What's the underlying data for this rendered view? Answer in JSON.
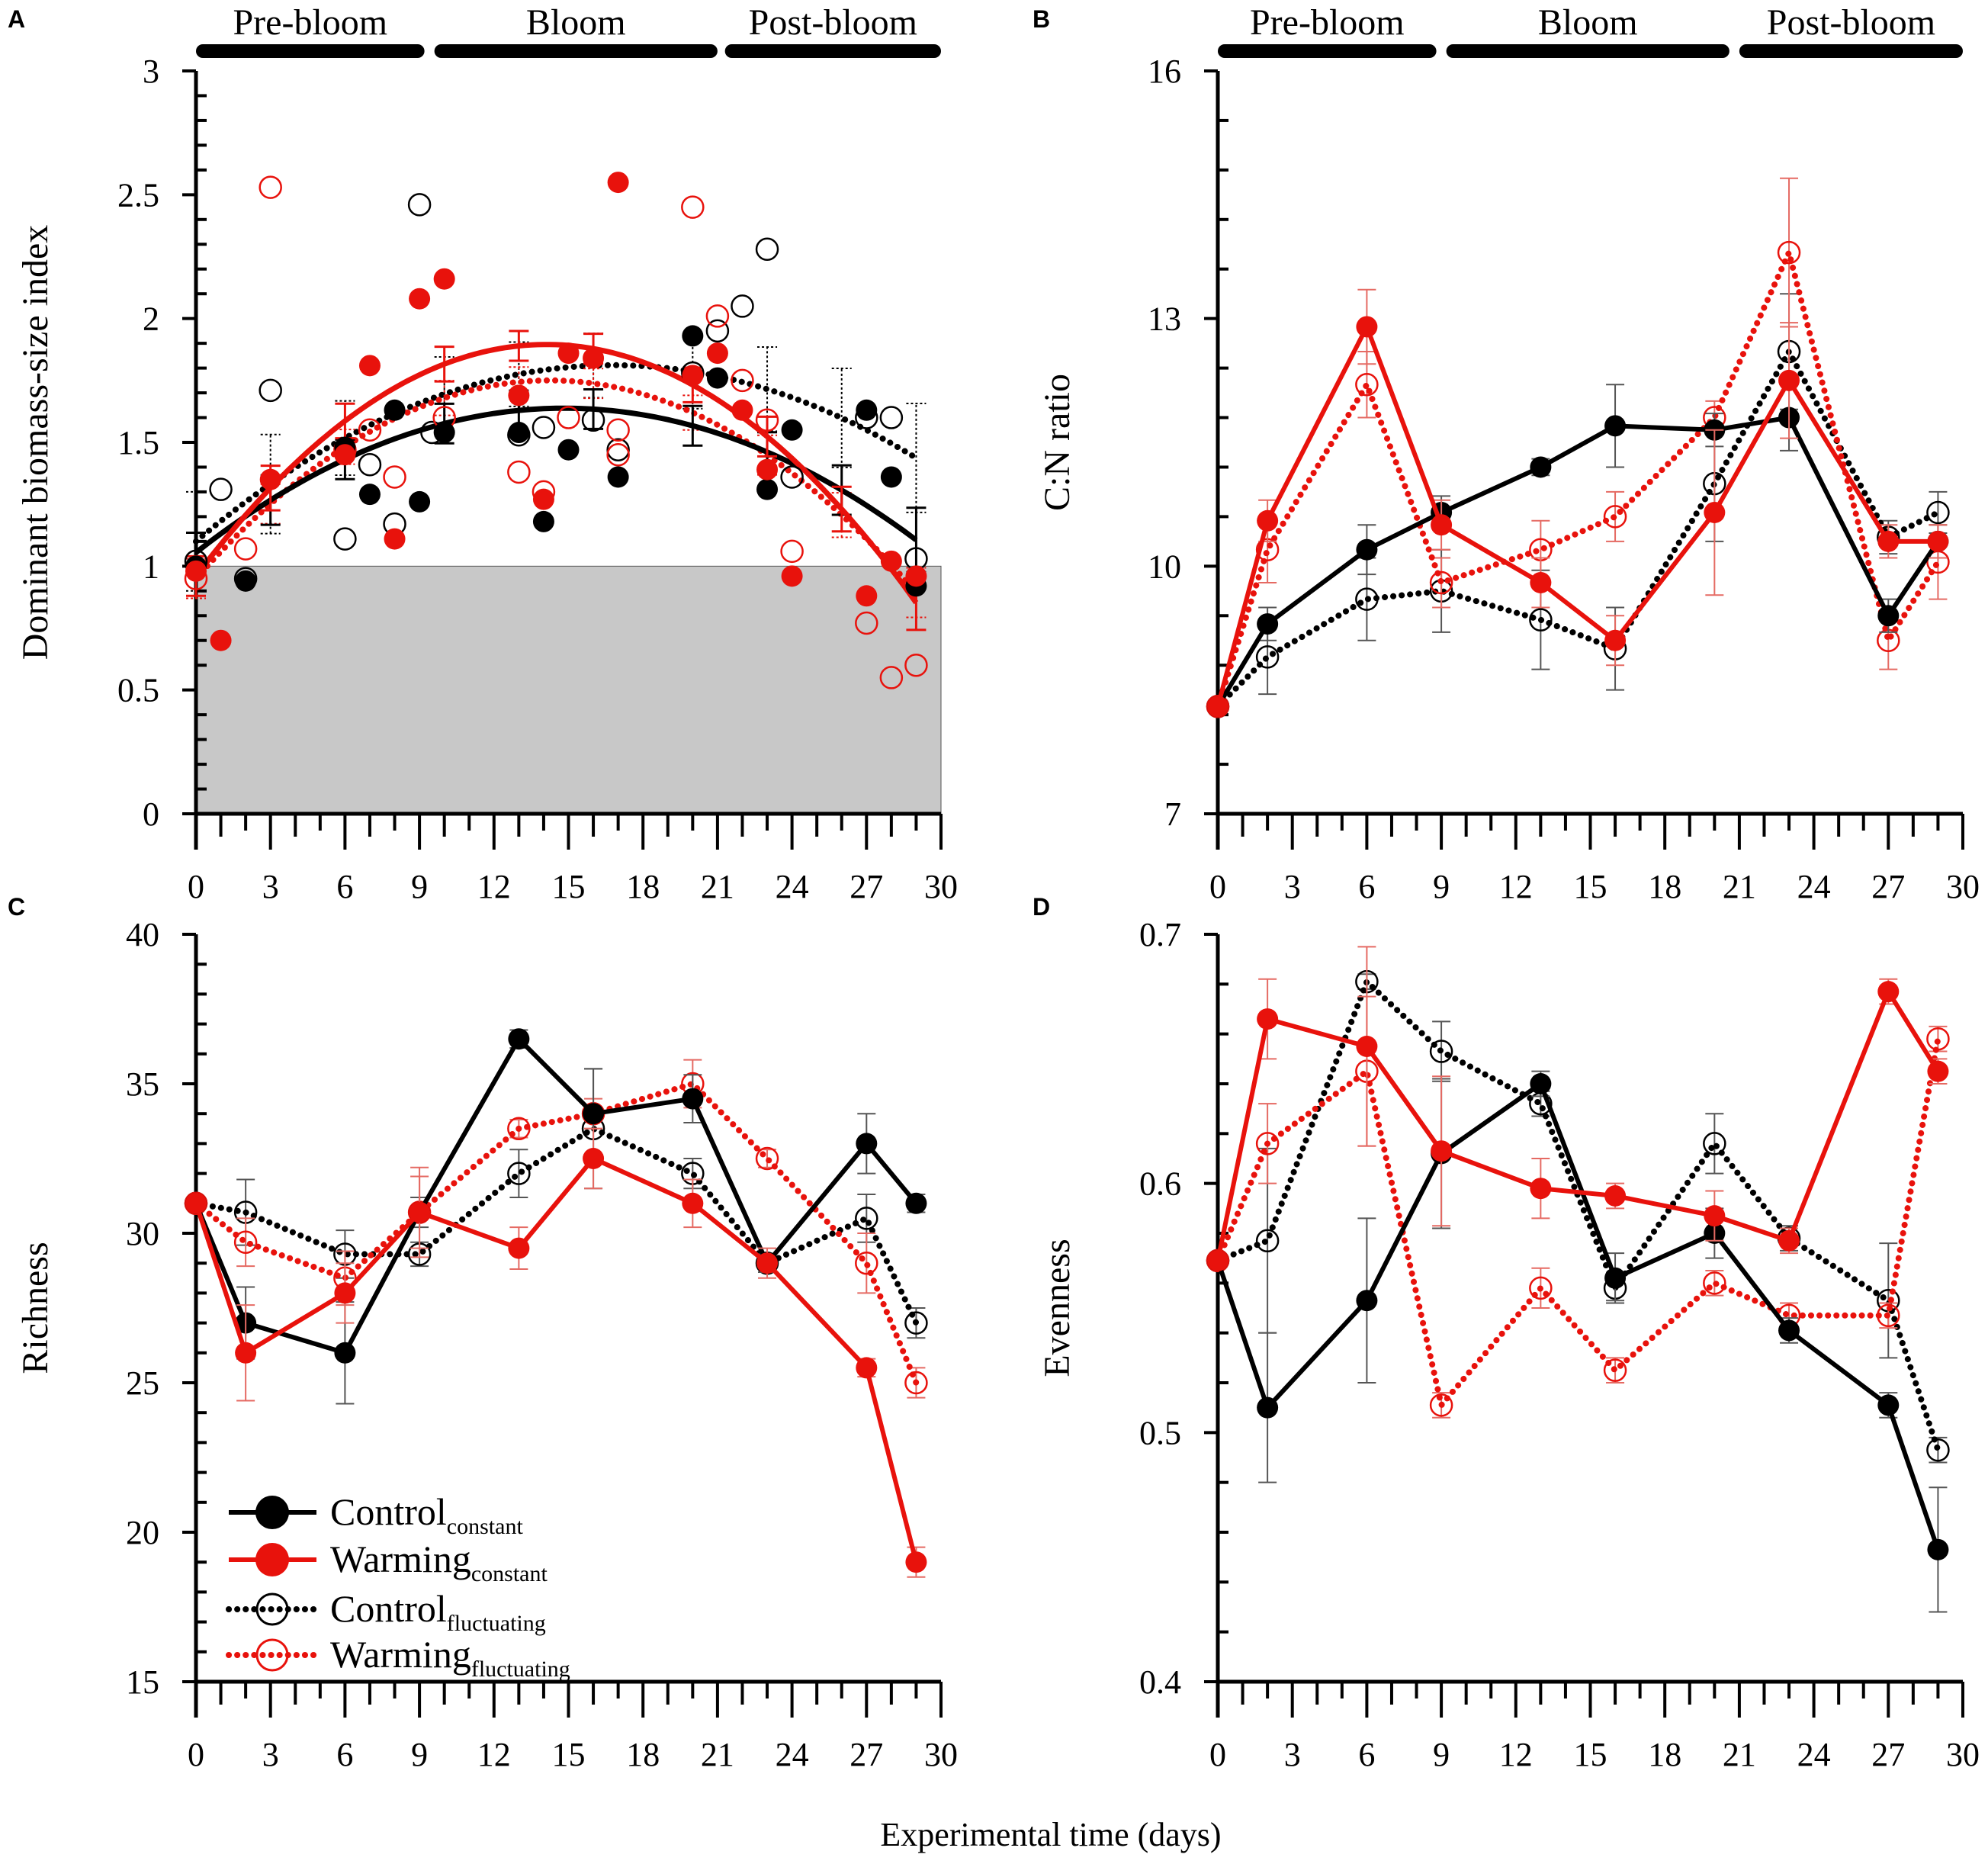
{
  "figure": {
    "xlabel": "Experimental time (days)"
  },
  "colors": {
    "control": "#000000",
    "warming": "#e8120c",
    "shade": "#c8c8c8"
  },
  "legend": {
    "items": [
      {
        "name": "Control",
        "sub": "constant",
        "series": "control_const"
      },
      {
        "name": "Warming",
        "sub": "constant",
        "series": "warming_const"
      },
      {
        "name": "Control",
        "sub": "fluctuating",
        "series": "control_fluct"
      },
      {
        "name": "Warming",
        "sub": "fluctuating",
        "series": "warming_fluct"
      }
    ]
  },
  "chart_data": [
    {
      "panel": "A",
      "type": "scatter",
      "ylabel": "Dominant biomass-size index",
      "xlim": [
        0,
        30
      ],
      "ylim": [
        0,
        3
      ],
      "xticks": [
        0,
        3,
        6,
        9,
        12,
        15,
        18,
        21,
        24,
        27,
        30
      ],
      "yticks": [
        0,
        0.5,
        1,
        1.5,
        2,
        2.5,
        3
      ],
      "ytick_labels": [
        "0",
        "0.5",
        "1",
        "1.5",
        "2",
        "2.5",
        "3"
      ],
      "shade_below": 1,
      "phases": [
        {
          "label": "Pre-bloom",
          "from": 0,
          "to": 9.2
        },
        {
          "label": "Bloom",
          "from": 9.6,
          "to": 21
        },
        {
          "label": "Post-bloom",
          "from": 21.3,
          "to": 30
        }
      ],
      "points": {
        "control_const": [
          [
            0,
            1.0
          ],
          [
            2,
            0.94
          ],
          [
            6,
            1.48
          ],
          [
            7,
            1.29
          ],
          [
            8,
            1.63
          ],
          [
            9,
            1.26
          ],
          [
            10,
            1.54
          ],
          [
            13,
            1.54
          ],
          [
            14,
            1.18
          ],
          [
            15,
            1.47
          ],
          [
            17,
            1.36
          ],
          [
            20,
            1.93
          ],
          [
            21,
            1.76
          ],
          [
            23,
            1.31
          ],
          [
            24,
            1.55
          ],
          [
            27,
            1.63
          ],
          [
            28,
            1.36
          ],
          [
            29,
            0.92
          ]
        ],
        "warming_const": [
          [
            0,
            0.98
          ],
          [
            1,
            0.7
          ],
          [
            3,
            1.35
          ],
          [
            6,
            1.45
          ],
          [
            7,
            1.81
          ],
          [
            8,
            1.11
          ],
          [
            9,
            2.08
          ],
          [
            10,
            2.16
          ],
          [
            13,
            1.69
          ],
          [
            14,
            1.27
          ],
          [
            15,
            1.86
          ],
          [
            16,
            1.84
          ],
          [
            17,
            2.55
          ],
          [
            20,
            1.77
          ],
          [
            21,
            1.86
          ],
          [
            22,
            1.63
          ],
          [
            23,
            1.39
          ],
          [
            24,
            0.96
          ],
          [
            27,
            0.88
          ],
          [
            28,
            1.02
          ],
          [
            29,
            0.96
          ]
        ],
        "control_fluct": [
          [
            0,
            1.02
          ],
          [
            1,
            1.31
          ],
          [
            2,
            0.95
          ],
          [
            3,
            1.71
          ],
          [
            6,
            1.11
          ],
          [
            7,
            1.41
          ],
          [
            8,
            1.17
          ],
          [
            9,
            2.46
          ],
          [
            9.5,
            1.54
          ],
          [
            13,
            1.53
          ],
          [
            14,
            1.56
          ],
          [
            16,
            1.59
          ],
          [
            17,
            1.47
          ],
          [
            20,
            1.78
          ],
          [
            21,
            1.95
          ],
          [
            22,
            2.05
          ],
          [
            23,
            2.28
          ],
          [
            24,
            1.36
          ],
          [
            27,
            1.6
          ],
          [
            28,
            1.6
          ],
          [
            29,
            1.03
          ]
        ],
        "warming_fluct": [
          [
            0,
            0.95
          ],
          [
            2,
            1.07
          ],
          [
            3,
            2.53
          ],
          [
            6,
            1.47
          ],
          [
            7,
            1.55
          ],
          [
            8,
            1.36
          ],
          [
            10,
            1.6
          ],
          [
            13,
            1.38
          ],
          [
            14,
            1.3
          ],
          [
            15,
            1.6
          ],
          [
            17,
            1.55
          ],
          [
            17,
            1.45
          ],
          [
            20,
            2.45
          ],
          [
            21,
            2.01
          ],
          [
            22,
            1.75
          ],
          [
            23,
            1.59
          ],
          [
            24,
            1.06
          ],
          [
            27,
            0.77
          ],
          [
            28,
            0.55
          ],
          [
            29,
            0.6
          ]
        ]
      },
      "fits": {
        "control_const": {
          "style": "solid",
          "coef": [
            1.055,
            0.0786,
            -0.00265
          ]
        },
        "warming_const": {
          "style": "solid",
          "coef": [
            0.96,
            0.1326,
            -0.0047
          ]
        },
        "control_fluct": {
          "style": "dotted",
          "coef": [
            1.1,
            0.0847,
            -0.00252
          ]
        },
        "warming_fluct": {
          "style": "dotted",
          "coef": [
            0.95,
            0.1123,
            -0.00394
          ]
        }
      },
      "fit_error_bars": {
        "control_const": [
          [
            0,
            0.08
          ],
          [
            3,
            0.1
          ],
          [
            6,
            0.08
          ],
          [
            10,
            0.08
          ],
          [
            13,
            0.08
          ],
          [
            16,
            0.08
          ],
          [
            20,
            0.08
          ],
          [
            23,
            0.08
          ],
          [
            26,
            0.1
          ],
          [
            29,
            0.13
          ]
        ],
        "warming_const": [
          [
            0,
            0.08
          ],
          [
            3,
            0.09
          ],
          [
            6,
            0.07
          ],
          [
            10,
            0.07
          ],
          [
            13,
            0.06
          ],
          [
            16,
            0.06
          ],
          [
            20,
            0.07
          ],
          [
            23,
            0.08
          ],
          [
            26,
            0.09
          ],
          [
            29,
            0.11
          ]
        ],
        "control_fluct": [
          [
            0,
            0.2
          ],
          [
            3,
            0.2
          ],
          [
            6,
            0.15
          ],
          [
            10,
            0.15
          ],
          [
            13,
            0.13
          ],
          [
            16,
            0.13
          ],
          [
            20,
            0.15
          ],
          [
            23,
            0.17
          ],
          [
            26,
            0.2
          ],
          [
            29,
            0.22
          ]
        ],
        "warming_fluct": [
          [
            0,
            0.08
          ],
          [
            3,
            0.08
          ],
          [
            6,
            0.07
          ],
          [
            10,
            0.07
          ],
          [
            13,
            0.06
          ],
          [
            16,
            0.06
          ],
          [
            20,
            0.07
          ],
          [
            23,
            0.08
          ],
          [
            26,
            0.09
          ],
          [
            29,
            0.1
          ]
        ]
      }
    },
    {
      "panel": "B",
      "type": "line",
      "ylabel": "C:N ratio",
      "xlim": [
        0,
        30
      ],
      "ylim": [
        7,
        16
      ],
      "xticks": [
        0,
        3,
        6,
        9,
        12,
        15,
        18,
        21,
        24,
        27,
        30
      ],
      "yticks": [
        7,
        10,
        13,
        16
      ],
      "ytick_labels": [
        "7",
        "10",
        "13",
        "16"
      ],
      "phases": [
        {
          "label": "Pre-bloom",
          "from": 0,
          "to": 8.8
        },
        {
          "label": "Bloom",
          "from": 9.2,
          "to": 20.6
        },
        {
          "label": "Post-bloom",
          "from": 21,
          "to": 30
        }
      ],
      "series": {
        "control_const": {
          "x": [
            0,
            2,
            6,
            9,
            13,
            16,
            20,
            23,
            27,
            29
          ],
          "y": [
            8.3,
            9.3,
            10.2,
            10.65,
            11.2,
            11.7,
            11.65,
            11.8,
            9.4,
            10.3
          ],
          "err": [
            0,
            0.2,
            0.3,
            0.2,
            0.1,
            0.5,
            0.2,
            0.4,
            0.2,
            0.2
          ]
        },
        "warming_const": {
          "x": [
            0,
            2,
            6,
            9,
            13,
            16,
            20,
            23,
            27,
            29
          ],
          "y": [
            8.3,
            10.55,
            12.9,
            10.5,
            9.8,
            9.1,
            10.65,
            12.25,
            10.3,
            10.3
          ],
          "err": [
            0,
            0.25,
            0.45,
            0.3,
            0.3,
            0.3,
            1.0,
            0.7,
            0.2,
            0.2
          ]
        },
        "control_fluct": {
          "x": [
            0,
            2,
            6,
            9,
            13,
            16,
            20,
            23,
            27,
            29
          ],
          "y": [
            8.3,
            8.9,
            9.6,
            9.7,
            9.35,
            9.0,
            11.0,
            12.6,
            10.35,
            10.65
          ],
          "err": [
            0,
            0.45,
            0.5,
            0.5,
            0.6,
            0.5,
            0.7,
            0.7,
            0.2,
            0.25
          ]
        },
        "warming_fluct": {
          "x": [
            0,
            2,
            6,
            9,
            13,
            16,
            20,
            23,
            27,
            29
          ],
          "y": [
            8.3,
            10.2,
            12.2,
            9.8,
            10.2,
            10.6,
            11.8,
            13.8,
            9.1,
            10.05
          ],
          "err": [
            0,
            0.4,
            0.4,
            0.3,
            0.35,
            0.3,
            0.2,
            0.9,
            0.35,
            0.45
          ]
        }
      }
    },
    {
      "panel": "C",
      "type": "line",
      "ylabel": "Richness",
      "xlim": [
        0,
        30
      ],
      "ylim": [
        15,
        40
      ],
      "xticks": [
        0,
        3,
        6,
        9,
        12,
        15,
        18,
        21,
        24,
        27,
        30
      ],
      "yticks": [
        15,
        20,
        25,
        30,
        35,
        40
      ],
      "ytick_labels": [
        "15",
        "20",
        "25",
        "30",
        "35",
        "40"
      ],
      "series": {
        "control_const": {
          "x": [
            0,
            2,
            6,
            9,
            13,
            16,
            20,
            23,
            27,
            29
          ],
          "y": [
            31,
            27,
            26,
            30.7,
            36.5,
            34,
            34.5,
            29,
            33,
            31
          ],
          "err": [
            0,
            1.2,
            1.7,
            0.5,
            0.3,
            1.5,
            0.8,
            0.3,
            1.0,
            0.3
          ]
        },
        "warming_const": {
          "x": [
            0,
            2,
            6,
            9,
            13,
            16,
            20,
            23,
            27,
            29
          ],
          "y": [
            31,
            26,
            28,
            30.7,
            29.5,
            32.5,
            31,
            29,
            25.5,
            19
          ],
          "err": [
            0,
            1.6,
            1.0,
            1.2,
            0.7,
            1.0,
            0.8,
            0.5,
            0.3,
            0.5
          ]
        },
        "control_fluct": {
          "x": [
            0,
            2,
            6,
            9,
            13,
            16,
            20,
            23,
            27,
            29
          ],
          "y": [
            31,
            30.7,
            29.3,
            29.3,
            32,
            33.5,
            32,
            29,
            30.5,
            27
          ],
          "err": [
            0,
            1.1,
            0.8,
            0.4,
            0.8,
            2.0,
            0.5,
            0.3,
            0.8,
            0.5
          ]
        },
        "warming_fluct": {
          "x": [
            0,
            2,
            6,
            9,
            13,
            16,
            20,
            23,
            27,
            29
          ],
          "y": [
            31,
            29.7,
            28.5,
            30.7,
            33.5,
            34,
            35,
            32.5,
            29,
            25
          ],
          "err": [
            0,
            0.8,
            0.9,
            1.5,
            0.3,
            0.5,
            0.8,
            0.3,
            1.0,
            0.5
          ]
        }
      }
    },
    {
      "panel": "D",
      "type": "line",
      "ylabel": "Evenness",
      "xlim": [
        0,
        30
      ],
      "ylim": [
        0.4,
        0.7
      ],
      "xticks": [
        0,
        3,
        6,
        9,
        12,
        15,
        18,
        21,
        24,
        27,
        30
      ],
      "yticks": [
        0.4,
        0.5,
        0.6,
        0.7
      ],
      "ytick_labels": [
        "0.4",
        "0.5",
        "0.6",
        "0.7"
      ],
      "series": {
        "control_const": {
          "x": [
            0,
            2,
            6,
            9,
            13,
            16,
            20,
            23,
            27,
            29
          ],
          "y": [
            0.569,
            0.51,
            0.553,
            0.612,
            0.64,
            0.562,
            0.58,
            0.541,
            0.511,
            0.453
          ],
          "err": [
            0,
            0.03,
            0.033,
            0.03,
            0.005,
            0.01,
            0.01,
            0.005,
            0.005,
            0.025
          ]
        },
        "warming_const": {
          "x": [
            0,
            2,
            6,
            9,
            13,
            16,
            20,
            23,
            27,
            29
          ],
          "y": [
            0.569,
            0.666,
            0.655,
            0.613,
            0.598,
            0.595,
            0.587,
            0.577,
            0.677,
            0.645
          ],
          "err": [
            0,
            0.016,
            0.04,
            0.03,
            0.012,
            0.005,
            0.01,
            0.005,
            0.005,
            0.005
          ]
        },
        "control_fluct": {
          "x": [
            0,
            2,
            6,
            9,
            13,
            16,
            20,
            23,
            27,
            29
          ],
          "y": [
            0.569,
            0.577,
            0.681,
            0.653,
            0.632,
            0.558,
            0.616,
            0.578,
            0.553,
            0.493
          ],
          "err": [
            0,
            0.037,
            0.003,
            0.012,
            0.005,
            0.005,
            0.012,
            0.005,
            0.023,
            0.005
          ]
        },
        "warming_fluct": {
          "x": [
            0,
            2,
            6,
            9,
            13,
            16,
            20,
            23,
            27,
            29
          ],
          "y": [
            0.569,
            0.616,
            0.645,
            0.511,
            0.558,
            0.525,
            0.56,
            0.547,
            0.547,
            0.658
          ],
          "err": [
            0,
            0.016,
            0.03,
            0.005,
            0.008,
            0.005,
            0.005,
            0.005,
            0.005,
            0.005
          ]
        }
      }
    }
  ]
}
